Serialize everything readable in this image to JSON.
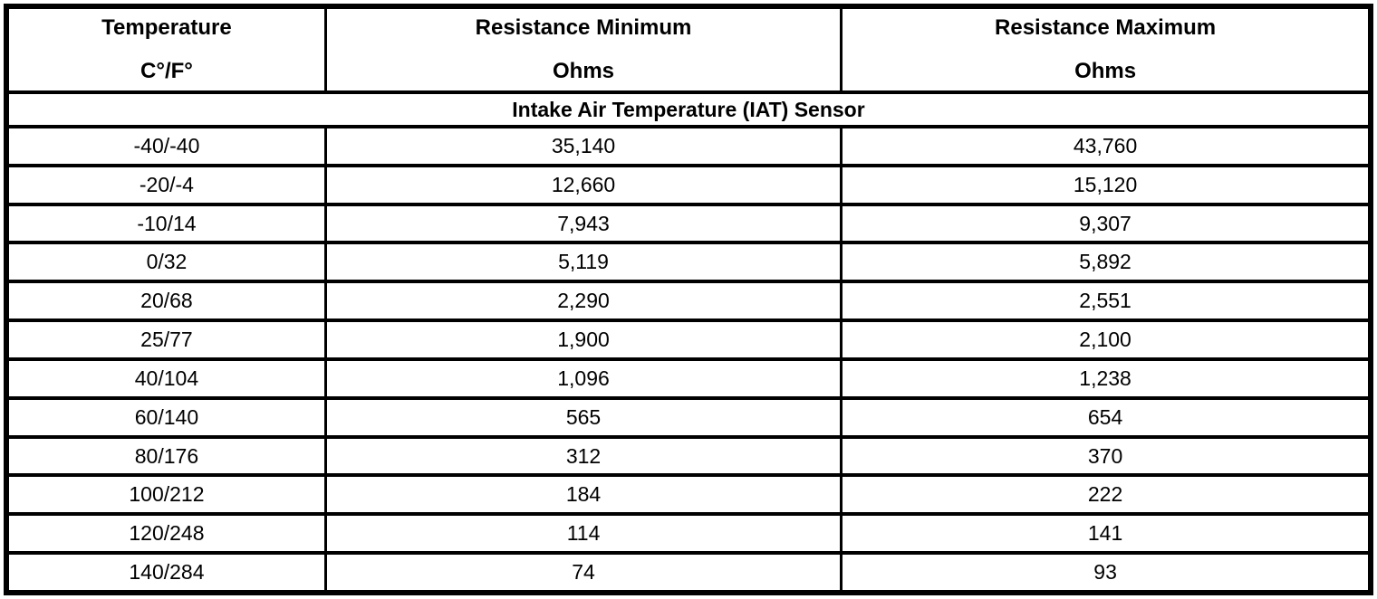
{
  "table": {
    "columns": [
      {
        "title": "Temperature",
        "subtitle": "C°/F°"
      },
      {
        "title": "Resistance Minimum",
        "subtitle": "Ohms"
      },
      {
        "title": "Resistance Maximum",
        "subtitle": "Ohms"
      }
    ],
    "section_title": "Intake Air Temperature (IAT) Sensor",
    "rows": [
      [
        "-40/-40",
        "35,140",
        "43,760"
      ],
      [
        "-20/-4",
        "12,660",
        "15,120"
      ],
      [
        "-10/14",
        "7,943",
        "9,307"
      ],
      [
        "0/32",
        "5,119",
        "5,892"
      ],
      [
        "20/68",
        "2,290",
        "2,551"
      ],
      [
        "25/77",
        "1,900",
        "2,100"
      ],
      [
        "40/104",
        "1,096",
        "1,238"
      ],
      [
        "60/140",
        "565",
        "654"
      ],
      [
        "80/176",
        "312",
        "370"
      ],
      [
        "100/212",
        "184",
        "222"
      ],
      [
        "120/248",
        "114",
        "141"
      ],
      [
        "140/284",
        "74",
        "93"
      ]
    ],
    "colors": {
      "border": "#000000",
      "text": "#000000",
      "background": "#ffffff"
    }
  }
}
